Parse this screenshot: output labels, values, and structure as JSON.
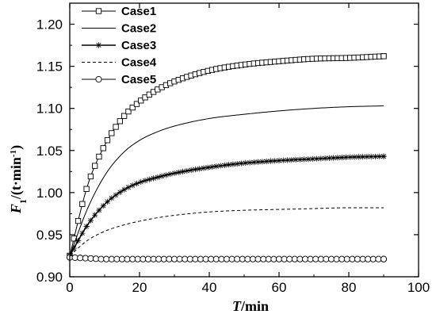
{
  "chart_data": {
    "type": "line",
    "x_axis": {
      "label_italic": "T",
      "label_rest": "/min",
      "ticks": [
        0,
        20,
        40,
        60,
        80,
        100
      ],
      "tick_labels": [
        "0",
        "20",
        "40",
        "60",
        "80",
        "100"
      ],
      "range": [
        0,
        100
      ]
    },
    "y_axis": {
      "label_italic": "F",
      "label_sub": "1",
      "label_rest": "/(t·min",
      "label_sup": "-1",
      "label_close": ")",
      "ticks": [
        0.9,
        0.95,
        1.0,
        1.05,
        1.1,
        1.15,
        1.2
      ],
      "tick_labels": [
        "0.90",
        "0.95",
        "1.00",
        "1.05",
        "1.10",
        "1.15",
        "1.20"
      ],
      "range": [
        0.9,
        1.225
      ]
    },
    "grid": false,
    "legend_position": "top-left",
    "series": [
      {
        "name": "Case1",
        "marker": "square",
        "line_style": "solid",
        "x": [
          0,
          5,
          10,
          15,
          20,
          25,
          30,
          40,
          50,
          60,
          70,
          80,
          90
        ],
        "values": [
          0.925,
          1.007,
          1.056,
          1.088,
          1.108,
          1.122,
          1.132,
          1.145,
          1.152,
          1.156,
          1.159,
          1.16,
          1.162
        ]
      },
      {
        "name": "Case2",
        "marker": "none",
        "line_style": "solid",
        "x": [
          0,
          5,
          10,
          15,
          20,
          25,
          30,
          40,
          50,
          60,
          70,
          80,
          90
        ],
        "values": [
          0.925,
          0.98,
          1.02,
          1.046,
          1.062,
          1.072,
          1.079,
          1.088,
          1.093,
          1.097,
          1.1,
          1.102,
          1.103
        ]
      },
      {
        "name": "Case3",
        "marker": "star",
        "line_style": "solid",
        "x": [
          0,
          5,
          10,
          15,
          20,
          25,
          30,
          40,
          50,
          60,
          70,
          80,
          90
        ],
        "values": [
          0.925,
          0.961,
          0.986,
          1.002,
          1.012,
          1.018,
          1.023,
          1.03,
          1.035,
          1.038,
          1.04,
          1.042,
          1.043
        ]
      },
      {
        "name": "Case4",
        "marker": "none",
        "line_style": "dashed",
        "x": [
          0,
          5,
          10,
          15,
          20,
          25,
          30,
          40,
          50,
          60,
          70,
          80,
          90
        ],
        "values": [
          0.925,
          0.943,
          0.954,
          0.961,
          0.966,
          0.97,
          0.973,
          0.977,
          0.979,
          0.98,
          0.981,
          0.982,
          0.982
        ]
      },
      {
        "name": "Case5",
        "marker": "circle",
        "line_style": "solid",
        "x": [
          0,
          5,
          10,
          15,
          20,
          25,
          30,
          40,
          50,
          60,
          70,
          80,
          90
        ],
        "values": [
          0.923,
          0.922,
          0.921,
          0.921,
          0.921,
          0.921,
          0.921,
          0.921,
          0.921,
          0.921,
          0.921,
          0.921,
          0.921
        ]
      }
    ]
  }
}
